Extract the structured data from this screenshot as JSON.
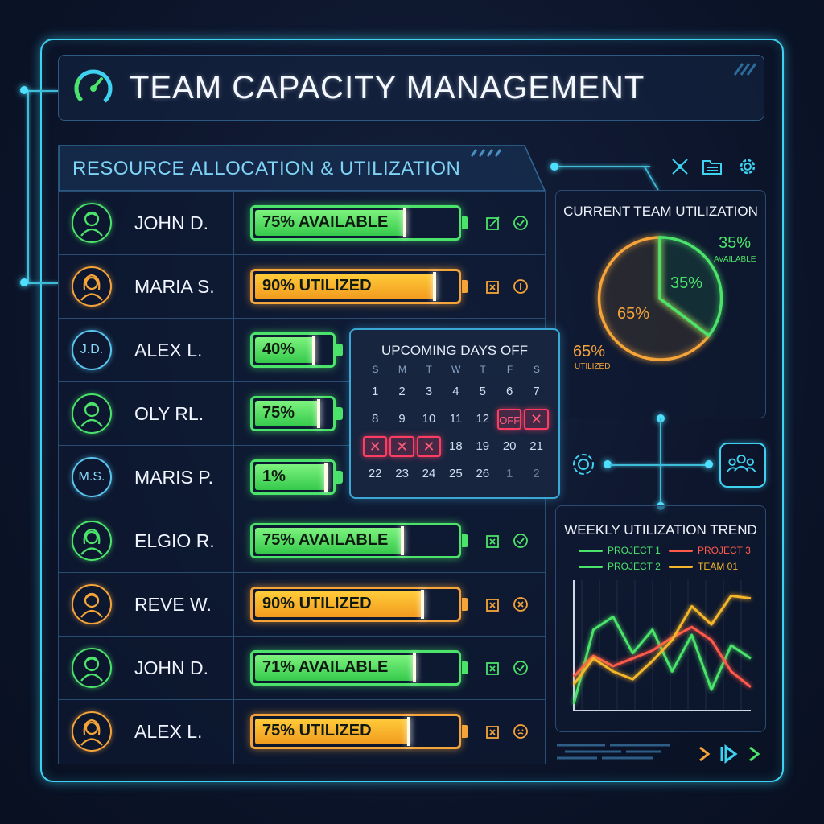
{
  "header": {
    "title": "TEAM CAPACITY MANAGEMENT"
  },
  "resources": {
    "title": "RESOURCE ALLOCATION & UTILIZATION",
    "rows": [
      {
        "avatar": "person",
        "initials": "",
        "color": "green",
        "name": "JOHN D.",
        "bar_text": "75% AVAILABLE",
        "bar_color": "green",
        "fill": 0.75,
        "wide": true,
        "icons": [
          "edit-icon",
          "check-circle-icon"
        ]
      },
      {
        "avatar": "person-female",
        "initials": "",
        "color": "orange",
        "name": "MARIA S.",
        "bar_text": "90% UTILIZED",
        "bar_color": "orange",
        "fill": 0.9,
        "wide": true,
        "icons": [
          "swap-icon",
          "info-circle-icon"
        ]
      },
      {
        "avatar": "initials",
        "initials": "J.D.",
        "color": "blue",
        "name": "ALEX L.",
        "bar_text": "40%",
        "bar_color": "green",
        "fill": 0.8,
        "wide": false,
        "icons": []
      },
      {
        "avatar": "person",
        "initials": "",
        "color": "green",
        "name": "OLY RL.",
        "bar_text": "75%",
        "bar_color": "green",
        "fill": 0.86,
        "wide": false,
        "icons": []
      },
      {
        "avatar": "initials",
        "initials": "M.S.",
        "color": "blue",
        "name": "MARIS P.",
        "bar_text": "1%",
        "bar_color": "green",
        "fill": 0.96,
        "wide": false,
        "icons": []
      },
      {
        "avatar": "person-female",
        "initials": "",
        "color": "green",
        "name": "ELGIO R.",
        "bar_text": "75% AVAILABLE",
        "bar_color": "green",
        "fill": 0.74,
        "wide": true,
        "icons": [
          "swap-icon",
          "check-circle-icon"
        ]
      },
      {
        "avatar": "person",
        "initials": "",
        "color": "orange",
        "name": "REVE W.",
        "bar_text": "90% UTILIZED",
        "bar_color": "orange",
        "fill": 0.84,
        "wide": true,
        "icons": [
          "swap-icon",
          "x-circle-icon"
        ]
      },
      {
        "avatar": "person",
        "initials": "",
        "color": "green",
        "name": "JOHN D.",
        "bar_text": "71% AVAILABLE",
        "bar_color": "green",
        "fill": 0.8,
        "wide": true,
        "icons": [
          "swap-icon",
          "check-circle-icon"
        ]
      },
      {
        "avatar": "person-female",
        "initials": "",
        "color": "orange",
        "name": "ALEX L.",
        "bar_text": "75% UTILIZED",
        "bar_color": "orange",
        "fill": 0.77,
        "wide": true,
        "icons": [
          "swap-icon",
          "face-circle-icon"
        ]
      }
    ]
  },
  "toolbar": {
    "icons": [
      "network-icon",
      "folder-icon",
      "gear-icon"
    ]
  },
  "utilization": {
    "title": "CURRENT TEAM UTILIZATION",
    "available_pct": "35%",
    "available_label": "AVAILABLE",
    "utilized_pct": "65%",
    "utilized_label": "UTILIZED",
    "slice_available": "35%",
    "slice_utilized": "65%"
  },
  "calendar": {
    "title": "UPCOMING DAYS OFF",
    "days_of_week": [
      "S",
      "M",
      "T",
      "W",
      "T",
      "F",
      "S"
    ],
    "weeks": [
      [
        {
          "t": "1"
        },
        {
          "t": "2"
        },
        {
          "t": "3"
        },
        {
          "t": "4"
        },
        {
          "t": "5"
        },
        {
          "t": "6"
        },
        {
          "t": "7"
        }
      ],
      [
        {
          "t": "8"
        },
        {
          "t": "9"
        },
        {
          "t": "10"
        },
        {
          "t": "11"
        },
        {
          "t": "12"
        },
        {
          "t": "OFF",
          "s": "off"
        },
        {
          "t": "✕",
          "s": "xday"
        }
      ],
      [
        {
          "t": "✕",
          "s": "xday"
        },
        {
          "t": "✕",
          "s": "xday"
        },
        {
          "t": "✕",
          "s": "xday"
        },
        {
          "t": "18"
        },
        {
          "t": "19"
        },
        {
          "t": "20"
        },
        {
          "t": "21"
        }
      ],
      [
        {
          "t": "22"
        },
        {
          "t": "23"
        },
        {
          "t": "24"
        },
        {
          "t": "25"
        },
        {
          "t": "26"
        },
        {
          "t": "1",
          "s": "dim"
        },
        {
          "t": "2",
          "s": "dim"
        }
      ]
    ]
  },
  "trend": {
    "title": "WEEKLY UTILIZATION TREND",
    "legend": [
      {
        "name": "PROJECT 1",
        "color": "#4be36a"
      },
      {
        "name": "PROJECT 3",
        "color": "#ff5a4a"
      },
      {
        "name": "PROJECT 2",
        "color": "#4be36a"
      },
      {
        "name": "TEAM 01",
        "color": "#f5b62a"
      }
    ]
  },
  "chart_data": {
    "type": "line",
    "title": "WEEKLY UTILIZATION TREND",
    "xlabel": "",
    "ylabel": "",
    "x": [
      1,
      2,
      3,
      4,
      5,
      6,
      7,
      8,
      9,
      10
    ],
    "ylim": [
      0,
      100
    ],
    "series": [
      {
        "name": "PROJECT 1",
        "color": "#4be36a",
        "values": [
          5,
          62,
          72,
          44,
          62,
          30,
          58,
          16,
          50,
          40
        ]
      },
      {
        "name": "PROJECT 3",
        "color": "#ff5a4a",
        "values": [
          26,
          42,
          34,
          40,
          46,
          56,
          64,
          54,
          30,
          18
        ]
      },
      {
        "name": "TEAM 01",
        "color": "#f5b62a",
        "values": [
          20,
          40,
          30,
          24,
          38,
          54,
          80,
          66,
          88,
          86
        ]
      }
    ]
  },
  "colors": {
    "accent": "#3fd2f0",
    "available": "#4be36a",
    "utilized": "#f5a43a",
    "off": "#ff3d62"
  }
}
